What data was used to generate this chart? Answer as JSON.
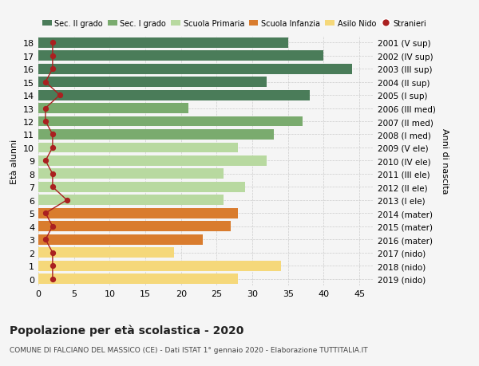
{
  "ages": [
    18,
    17,
    16,
    15,
    14,
    13,
    12,
    11,
    10,
    9,
    8,
    7,
    6,
    5,
    4,
    3,
    2,
    1,
    0
  ],
  "anni_nascita": [
    "2001 (V sup)",
    "2002 (IV sup)",
    "2003 (III sup)",
    "2004 (II sup)",
    "2005 (I sup)",
    "2006 (III med)",
    "2007 (II med)",
    "2008 (I med)",
    "2009 (V ele)",
    "2010 (IV ele)",
    "2011 (III ele)",
    "2012 (II ele)",
    "2013 (I ele)",
    "2014 (mater)",
    "2015 (mater)",
    "2016 (mater)",
    "2017 (nido)",
    "2018 (nido)",
    "2019 (nido)"
  ],
  "bar_values": [
    35,
    40,
    44,
    32,
    38,
    21,
    37,
    33,
    28,
    32,
    26,
    29,
    26,
    28,
    27,
    23,
    19,
    34,
    28
  ],
  "bar_colors": [
    "#4a7c59",
    "#4a7c59",
    "#4a7c59",
    "#4a7c59",
    "#4a7c59",
    "#7aab6e",
    "#7aab6e",
    "#7aab6e",
    "#b8d9a0",
    "#b8d9a0",
    "#b8d9a0",
    "#b8d9a0",
    "#b8d9a0",
    "#d97c2e",
    "#d97c2e",
    "#d97c2e",
    "#f5d87a",
    "#f5d87a",
    "#f5d87a"
  ],
  "stranieri_values": [
    2,
    2,
    2,
    1,
    3,
    1,
    1,
    2,
    2,
    1,
    2,
    2,
    4,
    1,
    2,
    1,
    2,
    2,
    2
  ],
  "legend_labels": [
    "Sec. II grado",
    "Sec. I grado",
    "Scuola Primaria",
    "Scuola Infanzia",
    "Asilo Nido",
    "Stranieri"
  ],
  "legend_colors": [
    "#4a7c59",
    "#7aab6e",
    "#b8d9a0",
    "#d97c2e",
    "#f5d87a",
    "#aa2020"
  ],
  "ylabel_left": "Età alunni",
  "ylabel_right": "Anni di nascita",
  "title": "Popolazione per età scolastica - 2020",
  "subtitle": "COMUNE DI FALCIANO DEL MASSICO (CE) - Dati ISTAT 1° gennaio 2020 - Elaborazione TUTTITALIA.IT",
  "xlim": [
    0,
    47
  ],
  "xticks": [
    0,
    5,
    10,
    15,
    20,
    25,
    30,
    35,
    40,
    45
  ],
  "background_color": "#f5f5f5",
  "grid_color": "#cccccc"
}
